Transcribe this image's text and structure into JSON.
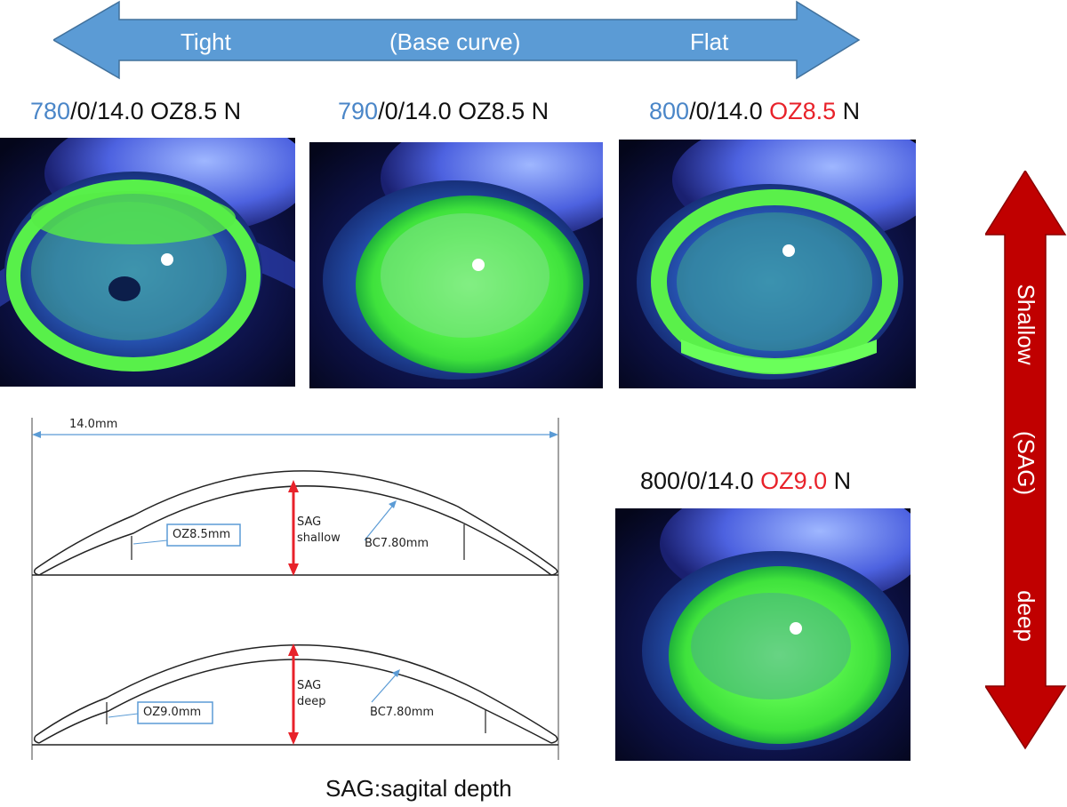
{
  "top_arrow": {
    "left": "Tight",
    "middle": "(Base curve)",
    "right": "Flat"
  },
  "side_arrow": {
    "top": "Shallow",
    "middle": "(SAG)",
    "bottom": "deep"
  },
  "lenses": [
    {
      "bc": "780",
      "rest": "/0/14.0 ",
      "oz": "OZ8.5",
      "suffix": " N"
    },
    {
      "bc": "790",
      "rest": "/0/14.0 ",
      "oz": "OZ8.5",
      "suffix": " N"
    },
    {
      "bc": "800",
      "rest": "/0/14.0 ",
      "oz": "OZ8.5",
      "suffix": " N"
    },
    {
      "bc": "800",
      "rest": "/0/14.0 ",
      "oz": "OZ9.0",
      "suffix": "  N"
    }
  ],
  "diagram": {
    "diameter": "14.0mm",
    "upper": {
      "oz": "OZ8.5mm",
      "sag_line1": "SAG",
      "sag_line2": "shallow",
      "bc": "BC7.80mm"
    },
    "lower": {
      "oz": "OZ9.0mm",
      "sag_line1": "SAG",
      "sag_line2": "deep",
      "bc": "BC7.80mm"
    }
  },
  "footer": "SAG:sagital depth",
  "colors": {
    "arrow_blue": "#5b9bd5",
    "arrow_red": "#c00000",
    "value_blue": "#4a86c8",
    "value_red": "#e8222a"
  }
}
